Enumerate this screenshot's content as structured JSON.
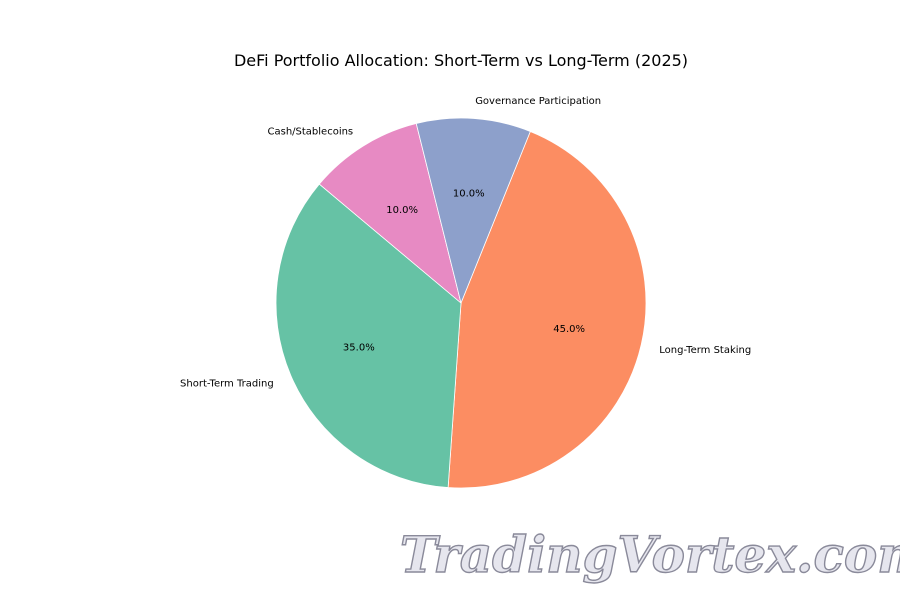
{
  "chart_data": {
    "type": "pie",
    "title": "DeFi Portfolio Allocation: Short-Term vs Long-Term (2025)",
    "slices": [
      {
        "label": "Long-Term Staking",
        "value": 45.0,
        "pct_label": "45.0%",
        "color": "#fc8d62"
      },
      {
        "label": "Short-Term Trading",
        "value": 35.0,
        "pct_label": "35.0%",
        "color": "#66c2a5"
      },
      {
        "label": "Cash/Stablecoins",
        "value": 10.0,
        "pct_label": "10.0%",
        "color": "#e78ac3"
      },
      {
        "label": "Governance Participation",
        "value": 10.0,
        "pct_label": "10.0%",
        "color": "#8da0cb"
      }
    ],
    "legend": "none"
  },
  "watermark": {
    "text": "TradingVortex.com"
  }
}
